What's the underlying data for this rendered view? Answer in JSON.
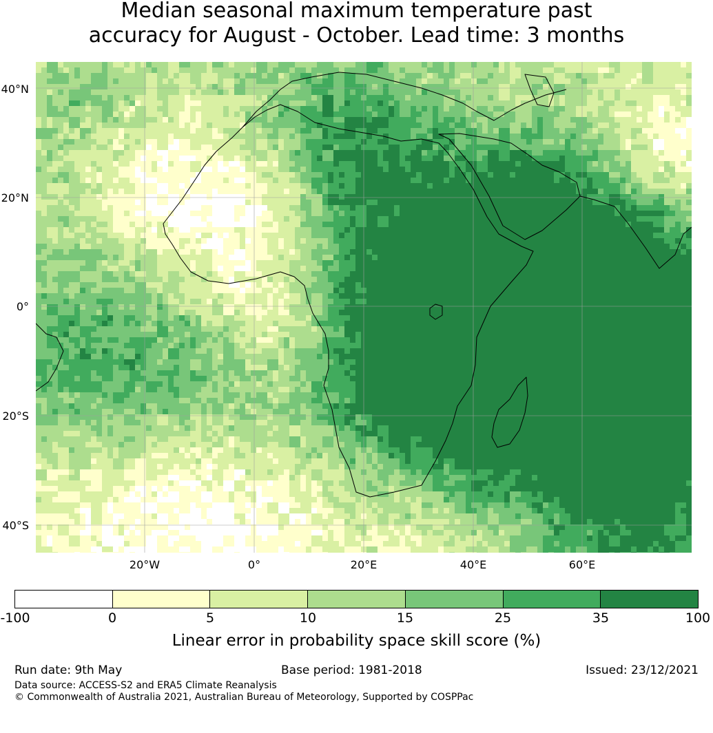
{
  "title": {
    "line1": "Median seasonal maximum temperature past",
    "line2": "accuracy for August - October. Lead time: 3 months"
  },
  "map": {
    "lat_labels": [
      "40°N",
      "20°N",
      "0°",
      "20°S",
      "40°S"
    ],
    "lon_labels": [
      "20°W",
      "0°",
      "20°E",
      "40°E",
      "60°E"
    ],
    "colors": {
      "land_outline": "#000000",
      "gridline": "#9e9e9e"
    }
  },
  "colorbar": {
    "ticks": [
      "-100",
      "0",
      "5",
      "10",
      "15",
      "25",
      "35",
      "100"
    ],
    "colors": [
      "#ffffff",
      "#ffffcc",
      "#d9f0a3",
      "#addd8e",
      "#78c679",
      "#41ab5d",
      "#238443"
    ],
    "label": "Linear error in probability space skill score (%)"
  },
  "footer": {
    "run_date": "Run date: 9th May",
    "base_period": "Base period: 1981-2018",
    "issued": "Issued: 23/12/2021",
    "data_source": "Data source: ACCESS-S2 and ERA5 Climate Reanalysis",
    "copyright": "© Commonwealth of Australia 2021, Australian Bureau of Meteorology, Supported by COSPPac"
  }
}
